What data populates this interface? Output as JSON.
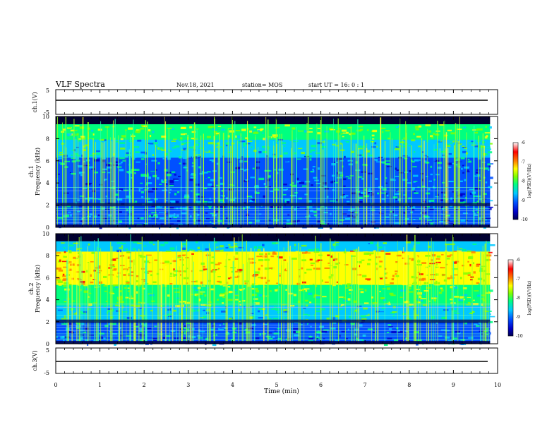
{
  "header": {
    "title": "VLF Spectra",
    "date": "Nov.18, 2021",
    "station": "station= MOS",
    "start": "start  UT =  16: 0  : 1"
  },
  "colors": {
    "spectrum": [
      "#000050",
      "#0000c8",
      "#0050ff",
      "#00c8ff",
      "#00ff80",
      "#80ff00",
      "#ffff00",
      "#ff8000",
      "#ff0000",
      "#ffffff"
    ]
  },
  "chart_data": [
    {
      "type": "line",
      "id": "ch1-voltage",
      "ylabel": "ch.1(V)",
      "ylim": [
        -5,
        5
      ],
      "yticks": [
        "5",
        "-5"
      ],
      "series": [
        {
          "x": [
            0,
            9.83
          ],
          "y": [
            0,
            0
          ]
        }
      ]
    },
    {
      "type": "heatmap",
      "id": "ch1-spectrum",
      "ylabel_line1": "ch.1",
      "ylabel_line2": "Frequency (kHz)",
      "ylim": [
        0,
        10
      ],
      "yticks": [
        "0",
        "2",
        "4",
        "6",
        "8",
        "10"
      ],
      "x_range": [
        0,
        9.83
      ],
      "colorbar": {
        "label": "log(PSD)(V²/Hz)",
        "ticks": [
          "-6",
          "-7",
          "-8",
          "-9",
          "-10"
        ],
        "range": [
          -10,
          -6
        ]
      }
    },
    {
      "type": "heatmap",
      "id": "ch2-spectrum",
      "ylabel_line1": "ch.2",
      "ylabel_line2": "Frequency (kHz)",
      "ylim": [
        0,
        10
      ],
      "yticks": [
        "0",
        "2",
        "4",
        "6",
        "8",
        "10"
      ],
      "x_range": [
        0,
        9.83
      ],
      "colorbar": {
        "label": "log(PSD)(V²/Hz)",
        "ticks": [
          "-6",
          "-7",
          "-8",
          "-9",
          "-10"
        ],
        "range": [
          -10,
          -6
        ]
      }
    },
    {
      "type": "line",
      "id": "ch3-voltage",
      "ylabel": "ch.3(V)",
      "ylim": [
        -5,
        5
      ],
      "yticks": [
        "5",
        "-5"
      ],
      "series": [
        {
          "x": [
            0,
            9.83
          ],
          "y": [
            0,
            0
          ]
        }
      ]
    }
  ],
  "x_axis": {
    "label": "Time (min)",
    "ticks": [
      "0",
      "1",
      "2",
      "3",
      "4",
      "5",
      "6",
      "7",
      "8",
      "9",
      "10"
    ],
    "range": [
      0,
      10
    ]
  }
}
